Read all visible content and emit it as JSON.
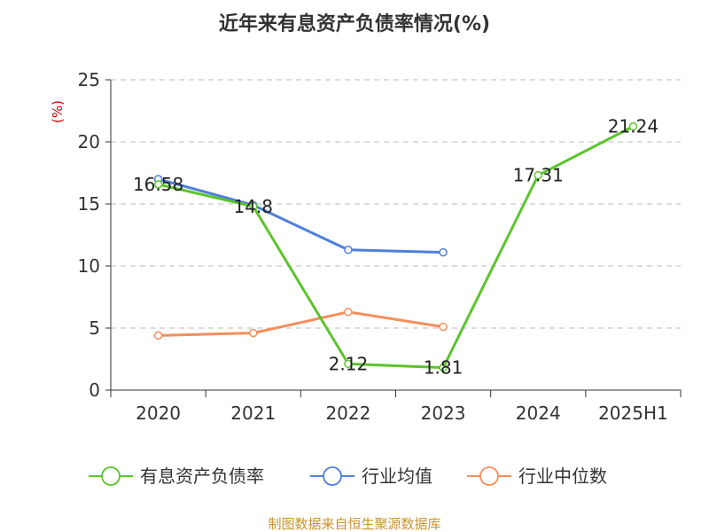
{
  "chart_data": {
    "type": "line",
    "title": "近年来有息资产负债率情况(%)",
    "unit_label": "(%)",
    "categories": [
      "2020",
      "2021",
      "2022",
      "2023",
      "2024",
      "2025H1"
    ],
    "ylim": [
      0,
      25
    ],
    "yticks": [
      0,
      5,
      10,
      15,
      20,
      25
    ],
    "grid": true,
    "legend_position": "bottom",
    "series": [
      {
        "name": "有息资产负债率",
        "color": "#5CC42C",
        "values": [
          16.58,
          14.8,
          2.12,
          1.81,
          17.31,
          21.24
        ],
        "show_labels": true
      },
      {
        "name": "行业均值",
        "color": "#4F7FDB",
        "values": [
          17.0,
          14.9,
          11.3,
          11.1,
          null,
          null
        ],
        "show_labels": false
      },
      {
        "name": "行业中位数",
        "color": "#F58E5C",
        "values": [
          4.4,
          4.6,
          6.3,
          5.1,
          null,
          null
        ],
        "show_labels": false
      }
    ]
  },
  "source_text": "制图数据来自恒生聚源数据库",
  "colors": {
    "unit": "#CC0000",
    "source": "#C8932E",
    "axis": "#333333",
    "grid": "#BBBBBB"
  }
}
